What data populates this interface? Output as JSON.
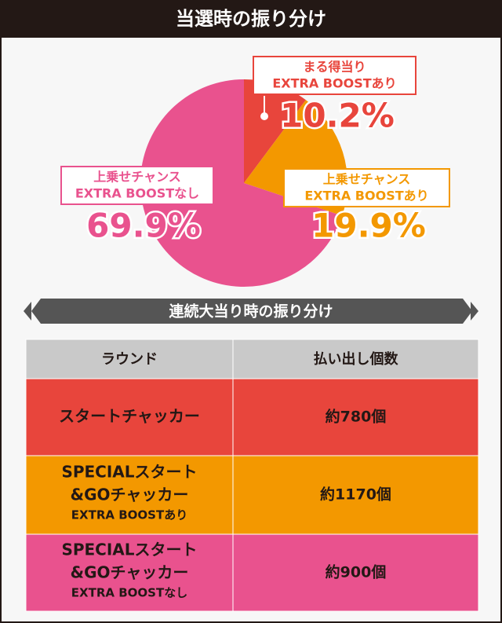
{
  "header": {
    "title": "当選時の振り分け"
  },
  "chart_data": {
    "type": "pie",
    "labels": [
      [
        "まる得当り",
        "EXTRA BOOSTあり"
      ],
      [
        "上乗せチャンス",
        "EXTRA BOOSTあり"
      ],
      [
        "上乗せチャンス",
        "EXTRA BOOSTなし"
      ]
    ],
    "values": [
      10.2,
      19.9,
      69.9
    ],
    "value_labels": [
      "10.2%",
      "19.9%",
      "69.9%"
    ],
    "colors": [
      "#e8453c",
      "#f39800",
      "#e9528e"
    ]
  },
  "section": {
    "title": "連続大当り時の振り分け"
  },
  "table": {
    "columns": [
      "ラウンド",
      "払い出し個数"
    ],
    "rows": [
      {
        "round": [
          "スタートチャッカー"
        ],
        "payout": "約780個"
      },
      {
        "round": [
          "SPECIALスタート",
          "&GOチャッカー"
        ],
        "note": "EXTRA BOOSTあり",
        "payout": "約1170個"
      },
      {
        "round": [
          "SPECIALスタート",
          "&GOチャッカー"
        ],
        "note": "EXTRA BOOSTなし",
        "payout": "約900個"
      }
    ]
  }
}
